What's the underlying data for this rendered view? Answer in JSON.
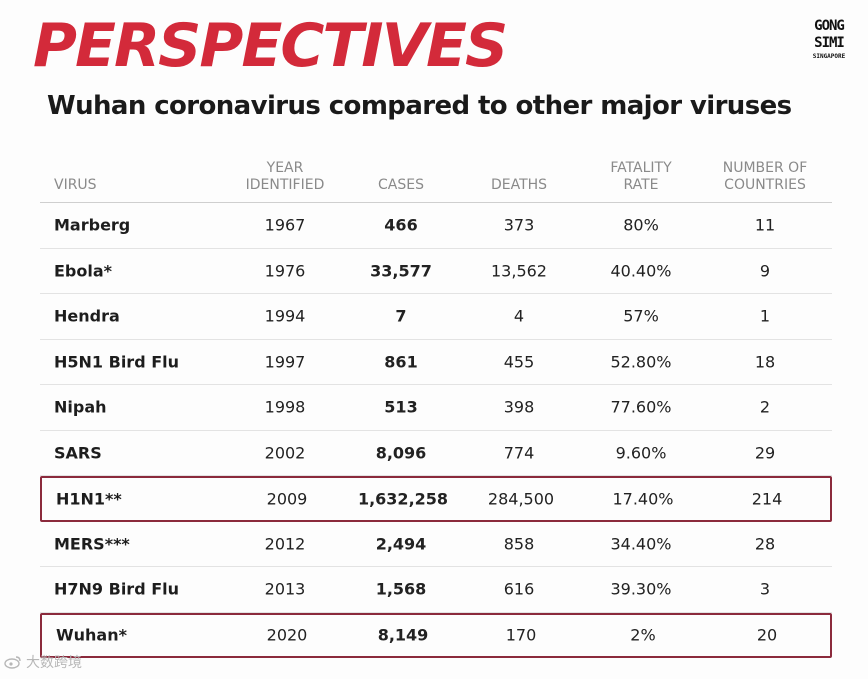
{
  "header": {
    "title": "PERSPECTIVES",
    "subtitle": "Wuhan coronavirus compared to other major viruses"
  },
  "logo": {
    "line1": "GONG",
    "line2": "SIMI",
    "line3": "SINGAPORE"
  },
  "colors": {
    "title": "#d32a3a",
    "highlight_border": "#8b2a3c",
    "header_text": "#8a8a8a"
  },
  "table": {
    "columns": [
      "VIRUS",
      "YEAR\nIDENTIFIED",
      "CASES",
      "DEATHS",
      "FATALITY\nRATE",
      "NUMBER OF\nCOUNTRIES"
    ],
    "rows": [
      {
        "virus": "Marberg",
        "year": "1967",
        "cases": "466",
        "deaths": "373",
        "rate": "80%",
        "countries": "11",
        "highlighted": false
      },
      {
        "virus": "Ebola*",
        "year": "1976",
        "cases": "33,577",
        "deaths": "13,562",
        "rate": "40.40%",
        "countries": "9",
        "highlighted": false
      },
      {
        "virus": "Hendra",
        "year": "1994",
        "cases": "7",
        "deaths": "4",
        "rate": "57%",
        "countries": "1",
        "highlighted": false
      },
      {
        "virus": "H5N1 Bird Flu",
        "year": "1997",
        "cases": "861",
        "deaths": "455",
        "rate": "52.80%",
        "countries": "18",
        "highlighted": false
      },
      {
        "virus": "Nipah",
        "year": "1998",
        "cases": "513",
        "deaths": "398",
        "rate": "77.60%",
        "countries": "2",
        "highlighted": false
      },
      {
        "virus": "SARS",
        "year": "2002",
        "cases": "8,096",
        "deaths": "774",
        "rate": "9.60%",
        "countries": "29",
        "highlighted": false
      },
      {
        "virus": "H1N1**",
        "year": "2009",
        "cases": "1,632,258",
        "deaths": "284,500",
        "rate": "17.40%",
        "countries": "214",
        "highlighted": true
      },
      {
        "virus": "MERS***",
        "year": "2012",
        "cases": "2,494",
        "deaths": "858",
        "rate": "34.40%",
        "countries": "28",
        "highlighted": false
      },
      {
        "virus": "H7N9 Bird Flu",
        "year": "2013",
        "cases": "1,568",
        "deaths": "616",
        "rate": "39.30%",
        "countries": "3",
        "highlighted": false
      },
      {
        "virus": "Wuhan*",
        "year": "2020",
        "cases": "8,149",
        "deaths": "170",
        "rate": "2%",
        "countries": "20",
        "highlighted": true
      }
    ]
  },
  "watermark": {
    "text": "大数跨境",
    "icon": "weibo-icon"
  }
}
